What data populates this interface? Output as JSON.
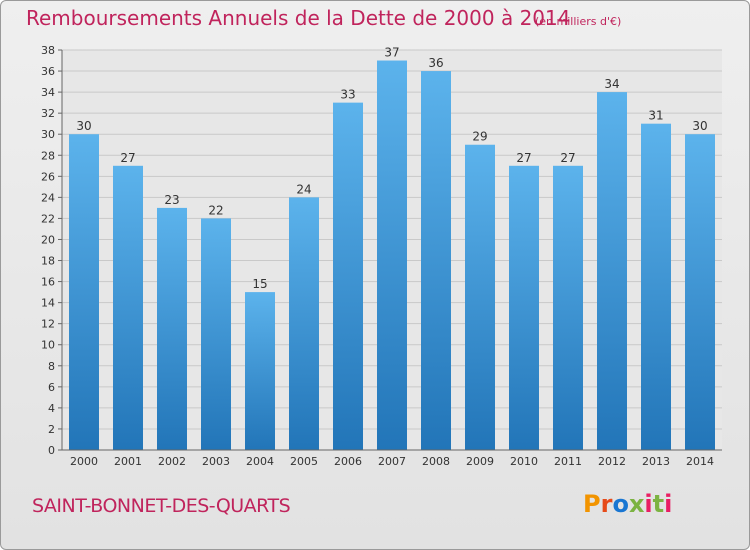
{
  "header": {
    "title": "Remboursements Annuels de la Dette de 2000 à 2014",
    "unit": "(en milliers d'€)"
  },
  "footer": {
    "commune": "SAINT-BONNET-DES-QUARTS",
    "logo_text": "Proxiti"
  },
  "colors": {
    "title": "#c0245c",
    "bar_light": "#5cb3ec",
    "bar_dark": "#2275b8",
    "plot_bg": "#e7e7e7"
  },
  "chart_data": {
    "type": "bar",
    "categories": [
      "2000",
      "2001",
      "2002",
      "2003",
      "2004",
      "2005",
      "2006",
      "2007",
      "2008",
      "2009",
      "2010",
      "2011",
      "2012",
      "2013",
      "2014"
    ],
    "values": [
      30,
      27,
      23,
      22,
      15,
      24,
      33,
      37,
      36,
      29,
      27,
      27,
      34,
      31,
      30
    ],
    "title": "Remboursements Annuels de la Dette de 2000 à 2014",
    "subtitle": "(en milliers d'€)",
    "xlabel": "",
    "ylabel": "",
    "ylim": [
      0,
      38
    ],
    "yticks": [
      0,
      2,
      4,
      6,
      8,
      10,
      12,
      14,
      16,
      18,
      20,
      22,
      24,
      26,
      28,
      30,
      32,
      34,
      36,
      38
    ],
    "grid": true,
    "legend": "none"
  }
}
